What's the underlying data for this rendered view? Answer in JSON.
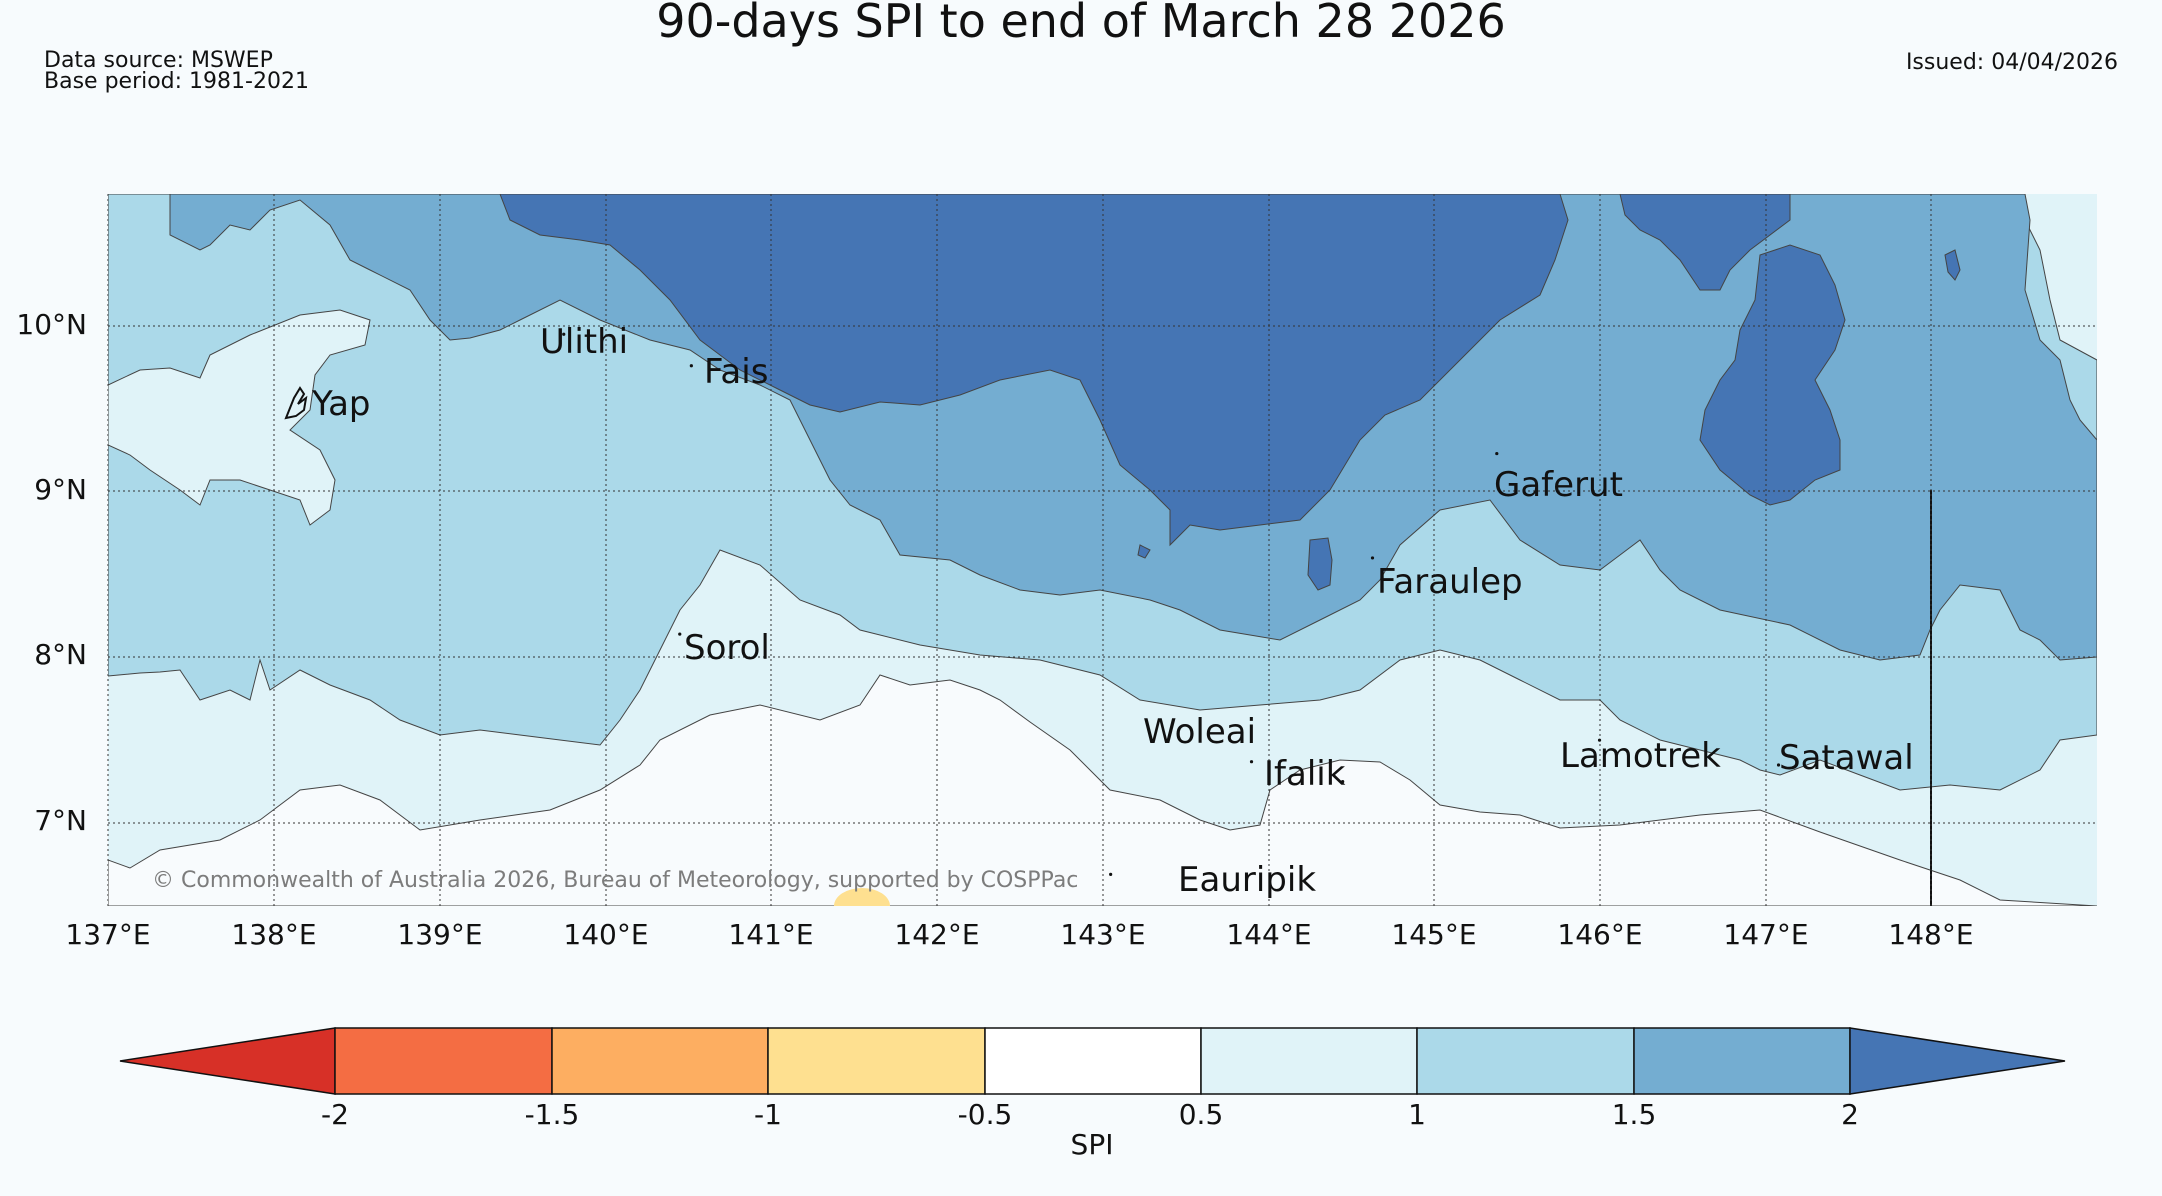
{
  "title": "90-days SPI to end of March 28 2026",
  "data_source": "Data source: MSWEP",
  "base_period": "Base period: 1981-2021",
  "issued": "Issued: 04/04/2026",
  "copyright": "© Commonwealth of Australia 2026, Bureau of Meteorology, supported by COSPPac",
  "map": {
    "lon_range": [
      137,
      149
    ],
    "lat_range": [
      6.5,
      10.8
    ],
    "lon_ticks": [
      "137°E",
      "138°E",
      "139°E",
      "140°E",
      "141°E",
      "142°E",
      "143°E",
      "144°E",
      "145°E",
      "146°E",
      "147°E",
      "148°E"
    ],
    "lat_ticks": [
      "10°N",
      "9°N",
      "8°N",
      "7°N"
    ]
  },
  "places": [
    {
      "name": "Yap",
      "lon": 138.1,
      "lat": 9.52
    },
    {
      "name": "Ulithi",
      "lon": 139.75,
      "lat": 9.95
    },
    {
      "name": "Fais",
      "lon": 140.52,
      "lat": 9.76
    },
    {
      "name": "Gaferut",
      "lon": 145.38,
      "lat": 9.23
    },
    {
      "name": "Faraulep",
      "lon": 144.63,
      "lat": 8.6
    },
    {
      "name": "Sorol",
      "lon": 140.45,
      "lat": 8.14
    },
    {
      "name": "Woleai",
      "lon": 143.9,
      "lat": 7.37
    },
    {
      "name": "Ifalik",
      "lon": 144.45,
      "lat": 7.25
    },
    {
      "name": "Lamotrek",
      "lon": 146.0,
      "lat": 7.5
    },
    {
      "name": "Satawal",
      "lon": 147.08,
      "lat": 7.35
    },
    {
      "name": "Eauripik",
      "lon": 143.05,
      "lat": 6.69
    }
  ],
  "colorbar": {
    "label": "SPI",
    "ticks": [
      "-2",
      "-1.5",
      "-1",
      "-0.5",
      "0.5",
      "1",
      "1.5",
      "2"
    ],
    "colors": [
      "#d73027",
      "#f46d43",
      "#fdae61",
      "#fee090",
      "#ffffff",
      "#e0f3f8",
      "#abd9e9",
      "#74add1",
      "#4575b4"
    ]
  }
}
